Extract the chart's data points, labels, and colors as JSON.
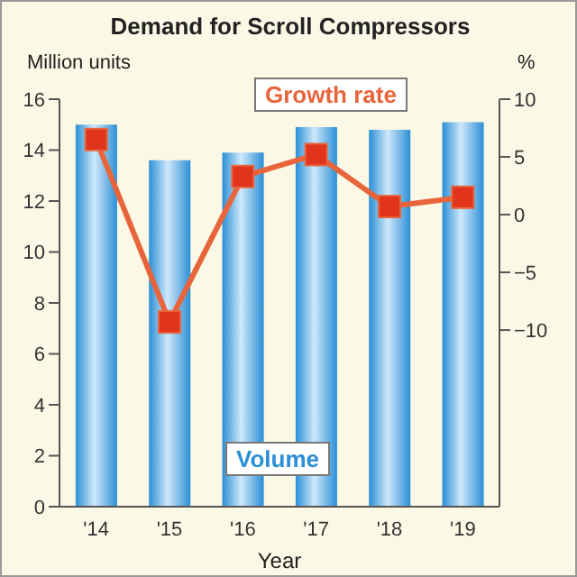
{
  "chart_data": {
    "type": "bar",
    "title": "Demand for Scroll Compressors",
    "xlabel": "Year",
    "ylabel": "Million units",
    "y2label": "%",
    "categories": [
      "'14",
      "'15",
      "'16",
      "'17",
      "'18",
      "'19"
    ],
    "series": [
      {
        "name": "Volume",
        "color": "#2b8fd6",
        "values": [
          15.0,
          13.6,
          13.9,
          14.9,
          14.8,
          15.1
        ]
      },
      {
        "name": "Growth rate",
        "type": "line",
        "axis": "y2",
        "color": "#e8653c",
        "values": [
          6.5,
          -9.3,
          3.3,
          5.2,
          0.7,
          1.5
        ]
      }
    ],
    "ylim": [
      0,
      16
    ],
    "yticks": [
      0,
      2,
      4,
      6,
      8,
      10,
      12,
      14,
      16
    ],
    "y2lim": [
      -25.3,
      10
    ],
    "y2ticks": [
      {
        "value": -10,
        "label": "−10"
      },
      {
        "value": -5,
        "label": "−5"
      },
      0,
      5,
      10
    ],
    "marker": "square",
    "grid": false,
    "legend": false
  }
}
